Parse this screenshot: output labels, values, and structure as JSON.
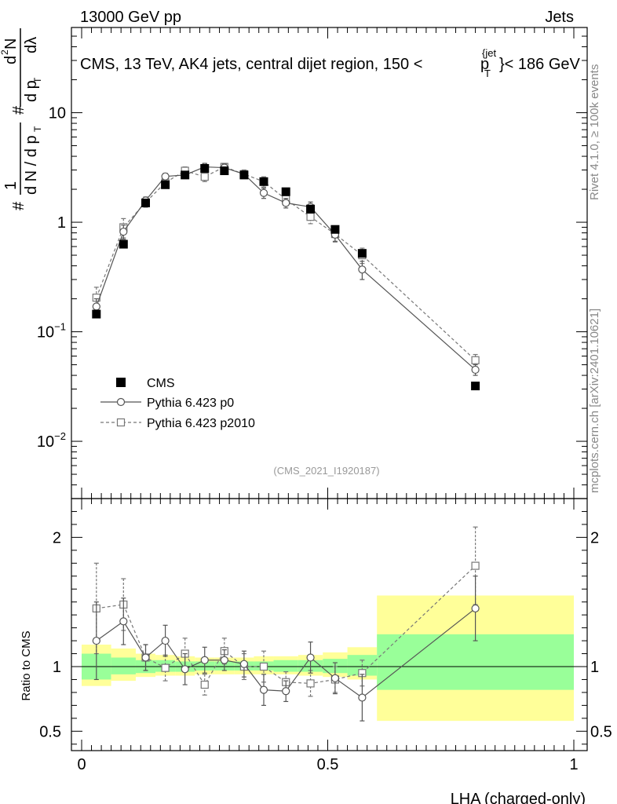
{
  "header": {
    "left": "13000 GeV pp",
    "right": "Jets",
    "title_prefix": "CMS, 13 TeV, AK4 jets, central dijet region, 150 <",
    "title_p": "p",
    "title_sup": "{jet",
    "title_sub": "T",
    "title_suffix": "}< 186 GeV"
  },
  "side_labels": {
    "rivet": "Rivet 4.1.0, ≥ 100k events",
    "mcplots": "mcplots.cern.ch [arXiv:2401.10621]"
  },
  "ylabel_main": {
    "hash": "#",
    "one": "1",
    "dN": "d N / d p",
    "dN_sub": "T",
    "hash2": "#",
    "dp": "d p",
    "dp_sub": "T",
    "d2N": "d",
    "d2N_sup": "2",
    "d2N_rest": "N",
    "dlambda": "dλ"
  },
  "analysis_id": "(CMS_2021_I1920187)",
  "legend": [
    {
      "label": "CMS",
      "style": "data"
    },
    {
      "label": "Pythia 6.423 p0",
      "style": "circle-solid"
    },
    {
      "label": "Pythia 6.423 p2010",
      "style": "square-dashed"
    }
  ],
  "xlabel": "LHA (charged-only)",
  "ratio_ylabel": "Ratio to CMS",
  "chart_data": {
    "type": "scatter",
    "x_range": [
      0,
      1
    ],
    "y_scale": "log",
    "y_range": [
      0.003,
      60
    ],
    "y_ticks": [
      {
        "value": 0.01,
        "base": "10",
        "exp": "−2"
      },
      {
        "value": 0.1,
        "base": "10",
        "exp": "−1"
      },
      {
        "value": 1,
        "base": "1",
        "exp": ""
      },
      {
        "value": 10,
        "base": "10",
        "exp": ""
      }
    ],
    "x_ticks": [
      {
        "value": 0,
        "label": "0"
      },
      {
        "value": 0.5,
        "label": "0.5"
      },
      {
        "value": 1,
        "label": "1"
      }
    ],
    "ratio_range": [
      0.35,
      2.3
    ],
    "ratio_ticks": [
      {
        "value": 0.5,
        "label": "0.5"
      },
      {
        "value": 1,
        "label": "1"
      },
      {
        "value": 2,
        "label": "2"
      }
    ],
    "x": [
      0.03,
      0.085,
      0.13,
      0.17,
      0.21,
      0.25,
      0.29,
      0.33,
      0.37,
      0.415,
      0.465,
      0.515,
      0.57,
      0.8
    ],
    "series": [
      {
        "name": "CMS",
        "values": [
          0.145,
          0.63,
          1.5,
          2.2,
          2.7,
          3.1,
          2.95,
          2.7,
          2.35,
          1.9,
          1.32,
          0.86,
          0.52,
          0.032
        ]
      },
      {
        "name": "Pythia 6.423 p0",
        "values": [
          0.17,
          0.82,
          1.58,
          2.62,
          2.7,
          3.2,
          3.15,
          2.75,
          1.85,
          1.5,
          1.38,
          0.77,
          0.37,
          0.045
        ],
        "errors": [
          0.03,
          0.12,
          0.12,
          0.18,
          0.2,
          0.25,
          0.25,
          0.2,
          0.2,
          0.15,
          0.15,
          0.1,
          0.07,
          0.005
        ]
      },
      {
        "name": "Pythia 6.423 p2010",
        "values": [
          0.205,
          0.9,
          1.52,
          2.3,
          2.95,
          2.6,
          3.2,
          2.75,
          2.35,
          1.62,
          1.12,
          0.78,
          0.5,
          0.055
        ],
        "errors": [
          0.05,
          0.18,
          0.15,
          0.2,
          0.25,
          0.25,
          0.25,
          0.25,
          0.25,
          0.18,
          0.15,
          0.12,
          0.08,
          0.007
        ]
      }
    ],
    "ratios": [
      {
        "name": "Pythia 6.423 p0",
        "values": [
          1.2,
          1.35,
          1.07,
          1.2,
          0.98,
          1.05,
          1.05,
          1.02,
          0.82,
          0.81,
          1.07,
          0.91,
          0.76,
          1.45
        ],
        "errors": [
          0.3,
          0.18,
          0.1,
          0.12,
          0.12,
          0.1,
          0.08,
          0.1,
          0.12,
          0.08,
          0.12,
          0.12,
          0.18,
          0.25
        ]
      },
      {
        "name": "Pythia 6.423 p2010",
        "values": [
          1.45,
          1.48,
          1.07,
          0.99,
          1.1,
          0.86,
          1.12,
          1.0,
          1.0,
          0.88,
          0.87,
          0.9,
          0.95,
          1.78
        ],
        "errors": [
          0.35,
          0.2,
          0.1,
          0.1,
          0.12,
          0.08,
          0.1,
          0.1,
          0.12,
          0.08,
          0.1,
          0.1,
          0.1,
          0.3
        ]
      }
    ],
    "bands": [
      {
        "x0": 0.0,
        "x1": 0.06,
        "y_lo": 0.85,
        "y_hi": 1.17,
        "g_lo": 0.9,
        "g_hi": 1.1
      },
      {
        "x0": 0.06,
        "x1": 0.11,
        "y_lo": 0.89,
        "y_hi": 1.14,
        "g_lo": 0.94,
        "g_hi": 1.07
      },
      {
        "x0": 0.11,
        "x1": 0.15,
        "y_lo": 0.92,
        "y_hi": 1.1,
        "g_lo": 0.95,
        "g_hi": 1.05
      },
      {
        "x0": 0.15,
        "x1": 0.19,
        "y_lo": 0.93,
        "y_hi": 1.09,
        "g_lo": 0.96,
        "g_hi": 1.05
      },
      {
        "x0": 0.19,
        "x1": 0.23,
        "y_lo": 0.93,
        "y_hi": 1.08,
        "g_lo": 0.96,
        "g_hi": 1.04
      },
      {
        "x0": 0.23,
        "x1": 0.27,
        "y_lo": 0.94,
        "y_hi": 1.07,
        "g_lo": 0.97,
        "g_hi": 1.04
      },
      {
        "x0": 0.27,
        "x1": 0.31,
        "y_lo": 0.94,
        "y_hi": 1.07,
        "g_lo": 0.97,
        "g_hi": 1.04
      },
      {
        "x0": 0.31,
        "x1": 0.35,
        "y_lo": 0.94,
        "y_hi": 1.07,
        "g_lo": 0.97,
        "g_hi": 1.04
      },
      {
        "x0": 0.35,
        "x1": 0.39,
        "y_lo": 0.94,
        "y_hi": 1.08,
        "g_lo": 0.97,
        "g_hi": 1.04
      },
      {
        "x0": 0.39,
        "x1": 0.44,
        "y_lo": 0.94,
        "y_hi": 1.08,
        "g_lo": 0.96,
        "g_hi": 1.05
      },
      {
        "x0": 0.44,
        "x1": 0.49,
        "y_lo": 0.93,
        "y_hi": 1.09,
        "g_lo": 0.96,
        "g_hi": 1.05
      },
      {
        "x0": 0.49,
        "x1": 0.54,
        "y_lo": 0.92,
        "y_hi": 1.11,
        "g_lo": 0.95,
        "g_hi": 1.06
      },
      {
        "x0": 0.54,
        "x1": 0.6,
        "y_lo": 0.9,
        "y_hi": 1.15,
        "g_lo": 0.93,
        "g_hi": 1.09
      },
      {
        "x0": 0.6,
        "x1": 1.0,
        "y_lo": 0.58,
        "y_hi": 1.55,
        "g_lo": 0.82,
        "g_hi": 1.25
      }
    ],
    "band_colors": {
      "outer": "#ffff99",
      "inner": "#99ff99"
    },
    "colors": {
      "p0_line": "#555555",
      "p2010_line": "#777777",
      "data": "#000000"
    }
  }
}
